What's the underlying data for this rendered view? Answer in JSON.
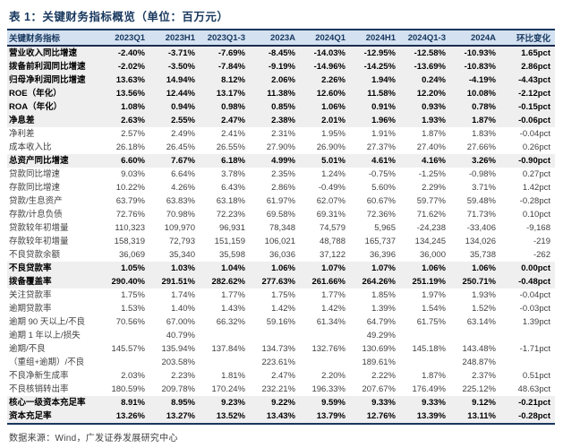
{
  "title": "表 1：关键财务指标概览（单位：百万元）",
  "source": "数据来源：Wind，广发证券发展研究中心",
  "colors": {
    "title_navy": "#17375e",
    "header_bg": "#d3e1f1",
    "header_rule": "#1a2c4e",
    "shaded_row_bg": "#efefef",
    "body_text": "#404040",
    "bold_text": "#000000"
  },
  "table": {
    "headers": [
      "关键财务指标",
      "2023Q1",
      "2023H1",
      "2023Q1-3",
      "2023A",
      "2024Q1",
      "2024H1",
      "2024Q1-3",
      "2024A",
      "环比变化"
    ],
    "rows": [
      {
        "label": "营业收入同比增速",
        "bold": true,
        "shaded": true,
        "values": [
          "-2.40%",
          "-3.71%",
          "-7.69%",
          "-8.45%",
          "-14.03%",
          "-12.95%",
          "-12.58%",
          "-10.93%",
          "1.65pct"
        ]
      },
      {
        "label": "拨备前利润同比增速",
        "bold": true,
        "shaded": true,
        "values": [
          "-2.02%",
          "-3.50%",
          "-7.84%",
          "-9.19%",
          "-14.96%",
          "-14.25%",
          "-13.69%",
          "-10.83%",
          "2.86pct"
        ]
      },
      {
        "label": "归母净利润同比增速",
        "bold": true,
        "shaded": true,
        "values": [
          "13.63%",
          "14.94%",
          "8.12%",
          "2.06%",
          "2.26%",
          "1.94%",
          "0.24%",
          "-4.19%",
          "-4.43pct"
        ]
      },
      {
        "label": "ROE（年化）",
        "bold": true,
        "shaded": true,
        "values": [
          "13.56%",
          "12.44%",
          "13.17%",
          "11.38%",
          "12.60%",
          "11.58%",
          "12.20%",
          "10.08%",
          "-2.12pct"
        ]
      },
      {
        "label": "ROA（年化）",
        "bold": true,
        "shaded": true,
        "values": [
          "1.08%",
          "0.94%",
          "0.98%",
          "0.85%",
          "1.06%",
          "0.91%",
          "0.93%",
          "0.78%",
          "-0.15pct"
        ]
      },
      {
        "label": "净息差",
        "bold": true,
        "shaded": true,
        "values": [
          "2.63%",
          "2.55%",
          "2.47%",
          "2.38%",
          "2.01%",
          "1.96%",
          "1.93%",
          "1.87%",
          "-0.06pct"
        ]
      },
      {
        "label": "净利差",
        "bold": false,
        "shaded": false,
        "values": [
          "2.57%",
          "2.49%",
          "2.41%",
          "2.31%",
          "1.95%",
          "1.91%",
          "1.87%",
          "1.83%",
          "-0.04pct"
        ]
      },
      {
        "label": "成本收入比",
        "bold": false,
        "shaded": false,
        "values": [
          "26.18%",
          "26.45%",
          "26.55%",
          "27.90%",
          "26.90%",
          "27.37%",
          "27.40%",
          "27.66%",
          "0.26pct"
        ]
      },
      {
        "label": "总资产同比增速",
        "bold": true,
        "shaded": true,
        "values": [
          "6.60%",
          "7.67%",
          "6.18%",
          "4.99%",
          "5.01%",
          "4.61%",
          "4.16%",
          "3.26%",
          "-0.90pct"
        ]
      },
      {
        "label": "贷款同比增速",
        "bold": false,
        "shaded": false,
        "values": [
          "9.03%",
          "6.64%",
          "3.78%",
          "2.35%",
          "1.24%",
          "-0.75%",
          "-1.25%",
          "-0.98%",
          "0.27pct"
        ]
      },
      {
        "label": "存款同比增速",
        "bold": false,
        "shaded": false,
        "values": [
          "10.22%",
          "4.26%",
          "6.43%",
          "2.86%",
          "-0.49%",
          "5.60%",
          "2.29%",
          "3.71%",
          "1.42pct"
        ]
      },
      {
        "label": "贷款/生息资产",
        "bold": false,
        "shaded": false,
        "values": [
          "63.79%",
          "63.83%",
          "63.18%",
          "61.97%",
          "62.07%",
          "60.67%",
          "59.77%",
          "59.48%",
          "-0.28pct"
        ]
      },
      {
        "label": "存款/计息负债",
        "bold": false,
        "shaded": false,
        "values": [
          "72.76%",
          "70.98%",
          "72.23%",
          "69.58%",
          "69.31%",
          "72.36%",
          "71.62%",
          "71.73%",
          "0.10pct"
        ]
      },
      {
        "label": "贷款较年初增量",
        "bold": false,
        "shaded": false,
        "values": [
          "110,323",
          "109,970",
          "96,931",
          "78,348",
          "74,579",
          "5,965",
          "-24,238",
          "-33,406",
          "-9,168"
        ]
      },
      {
        "label": "存款较年初增量",
        "bold": false,
        "shaded": false,
        "values": [
          "158,319",
          "72,793",
          "151,159",
          "106,021",
          "48,788",
          "165,737",
          "134,245",
          "134,026",
          "-219"
        ]
      },
      {
        "label": "不良贷款余额",
        "bold": false,
        "shaded": false,
        "values": [
          "36,069",
          "35,340",
          "35,598",
          "36,036",
          "37,122",
          "36,396",
          "36,000",
          "35,738",
          "-262"
        ]
      },
      {
        "label": "不良贷款率",
        "bold": true,
        "shaded": true,
        "values": [
          "1.05%",
          "1.03%",
          "1.04%",
          "1.06%",
          "1.07%",
          "1.07%",
          "1.06%",
          "1.06%",
          "0.00pct"
        ]
      },
      {
        "label": "拨备覆盖率",
        "bold": true,
        "shaded": true,
        "values": [
          "290.40%",
          "291.51%",
          "282.62%",
          "277.63%",
          "261.66%",
          "264.26%",
          "251.19%",
          "250.71%",
          "-0.48pct"
        ]
      },
      {
        "label": "关注贷款率",
        "bold": false,
        "shaded": false,
        "values": [
          "1.75%",
          "1.74%",
          "1.77%",
          "1.75%",
          "1.77%",
          "1.85%",
          "1.97%",
          "1.93%",
          "-0.04pct"
        ]
      },
      {
        "label": "逾期贷款率",
        "bold": false,
        "shaded": false,
        "values": [
          "1.53%",
          "1.40%",
          "1.43%",
          "1.42%",
          "1.42%",
          "1.39%",
          "1.54%",
          "1.52%",
          "-0.03pct"
        ]
      },
      {
        "label": "逾期 90 天以上/不良",
        "bold": false,
        "shaded": false,
        "values": [
          "70.56%",
          "67.00%",
          "66.32%",
          "59.16%",
          "61.34%",
          "64.79%",
          "61.75%",
          "63.14%",
          "1.39pct"
        ]
      },
      {
        "label": "逾期 1 年以上/损失",
        "bold": false,
        "shaded": false,
        "values": [
          "",
          "40.79%",
          "",
          "",
          "",
          "49.29%",
          "",
          "",
          ""
        ]
      },
      {
        "label": "逾期/不良",
        "bold": false,
        "shaded": false,
        "values": [
          "145.57%",
          "135.94%",
          "137.84%",
          "134.73%",
          "132.76%",
          "130.69%",
          "145.18%",
          "143.48%",
          "-1.71pct"
        ]
      },
      {
        "label": "（重组+逾期）/不良",
        "bold": false,
        "shaded": false,
        "values": [
          "",
          "203.58%",
          "",
          "223.61%",
          "",
          "189.61%",
          "",
          "248.87%",
          ""
        ]
      },
      {
        "label": "不良净新生成率",
        "bold": false,
        "shaded": false,
        "values": [
          "2.03%",
          "2.23%",
          "1.81%",
          "2.47%",
          "2.20%",
          "2.22%",
          "1.87%",
          "2.37%",
          "0.51pct"
        ]
      },
      {
        "label": "不良核销转出率",
        "bold": false,
        "shaded": false,
        "values": [
          "180.59%",
          "209.78%",
          "170.24%",
          "232.21%",
          "196.33%",
          "207.67%",
          "176.49%",
          "225.12%",
          "48.63pct"
        ]
      },
      {
        "label": "核心一级资本充足率",
        "bold": true,
        "shaded": true,
        "values": [
          "8.91%",
          "8.95%",
          "9.23%",
          "9.22%",
          "9.59%",
          "9.33%",
          "9.33%",
          "9.12%",
          "-0.21pct"
        ]
      },
      {
        "label": "资本充足率",
        "bold": true,
        "shaded": true,
        "values": [
          "13.26%",
          "13.27%",
          "13.52%",
          "13.43%",
          "13.79%",
          "12.76%",
          "13.39%",
          "13.11%",
          "-0.28pct"
        ]
      }
    ]
  }
}
